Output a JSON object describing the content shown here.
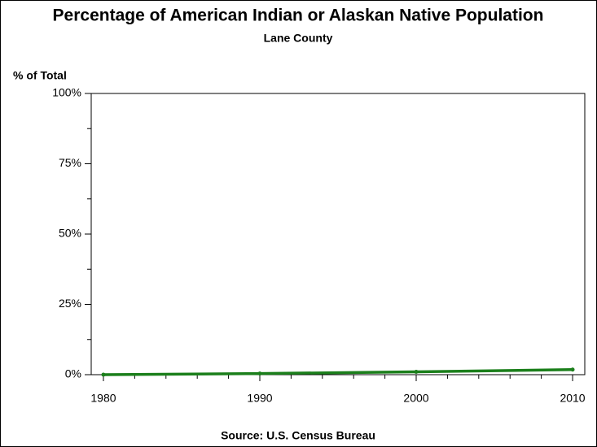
{
  "chart_data": {
    "type": "line",
    "title": "Percentage of American Indian or Alaskan Native Population",
    "subtitle": "Lane County",
    "y_label": "% of Total",
    "source": "Source: U.S. Census Bureau",
    "x": [
      1980,
      1990,
      2000,
      2010
    ],
    "series": [
      {
        "name": "Lane County",
        "color": "#1b7f1b",
        "values": [
          0,
          0.4,
          1.0,
          1.8
        ]
      }
    ],
    "xlim": [
      1979.22,
      2010.78
    ],
    "xticks": [
      1980,
      1990,
      2000,
      2010
    ],
    "xminorticks": [
      1982,
      1984,
      1986,
      1988,
      1992,
      1994,
      1996,
      1998,
      2002,
      2004,
      2006,
      2008
    ],
    "ylim": [
      0,
      100
    ],
    "yticks": [
      {
        "value": 0,
        "label": "0%"
      },
      {
        "value": 25,
        "label": "25%"
      },
      {
        "value": 50,
        "label": "50%"
      },
      {
        "value": 75,
        "label": "75%"
      },
      {
        "value": 100,
        "label": "100%"
      }
    ],
    "yminorticks": [
      12.5,
      37.5,
      62.5,
      87.5
    ],
    "grid": false
  }
}
